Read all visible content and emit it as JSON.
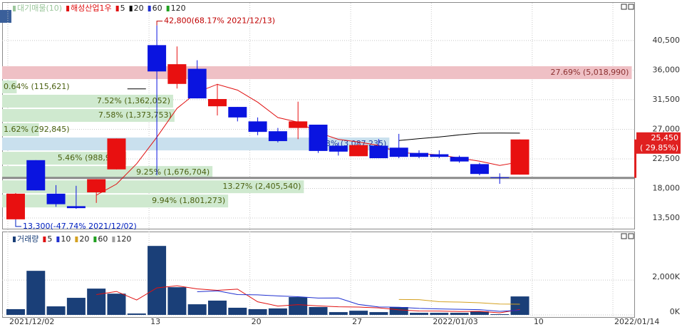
{
  "chart_data": {
    "type": "candlestick",
    "legend": [
      {
        "name": "대기매물(10)",
        "color": "#9cc79c"
      },
      {
        "name": "해성산업1우",
        "color": "#e01010"
      },
      {
        "name": 5,
        "color": "#e01010"
      },
      {
        "name": 20,
        "color": "#000000"
      },
      {
        "name": 60,
        "color": "#2030d0"
      },
      {
        "name": 120,
        "color": "#20a020"
      }
    ],
    "up_color": "#e81010",
    "down_color": "#0a14e0",
    "flat_color": "#000000",
    "xlim": [
      -0.67,
      30.67
    ],
    "xticks": [
      {
        "value": 0,
        "label": "2021/12/02"
      },
      {
        "value": 7,
        "label": "13"
      },
      {
        "value": 12,
        "label": "20"
      },
      {
        "value": 17,
        "label": "27"
      },
      {
        "value": 21,
        "label": "2022/01/03"
      },
      {
        "value": 26,
        "label": "10"
      },
      {
        "value": 30,
        "label": "2022/01/14"
      }
    ],
    "ylim": [
      12200,
      45800
    ],
    "yticks": [
      {
        "value": 13500,
        "label": "13,500"
      },
      {
        "value": 18000,
        "label": "18,000"
      },
      {
        "value": 22500,
        "label": "22,500"
      },
      {
        "value": 27000,
        "label": "27,000"
      },
      {
        "value": 31500,
        "label": "31,500"
      },
      {
        "value": 36000,
        "label": "36,000"
      },
      {
        "value": 40500,
        "label": "40,500"
      }
    ],
    "open": [
      13300,
      22300,
      17200,
      15300,
      17400,
      20900,
      33200,
      39800,
      33900,
      36200,
      30500,
      30400,
      28200,
      26700,
      27200,
      27700,
      24500,
      22900,
      24500,
      24200,
      23400,
      23200,
      22800,
      21700,
      19700,
      20100
    ],
    "high": [
      17300,
      22300,
      18500,
      18400,
      19400,
      25600,
      33200,
      42800,
      39600,
      37500,
      33900,
      30400,
      28800,
      27200,
      31200,
      27700,
      25000,
      24800,
      25500,
      26300,
      23800,
      23800,
      23000,
      21900,
      20300,
      25450
    ],
    "low": [
      13300,
      17700,
      15200,
      14900,
      15800,
      20900,
      33200,
      20000,
      33200,
      31700,
      29100,
      28200,
      26100,
      25000,
      25500,
      23400,
      23000,
      22900,
      22600,
      22600,
      22600,
      22600,
      21900,
      20000,
      18700,
      20100
    ],
    "close": [
      17200,
      17700,
      15600,
      15000,
      19400,
      25600,
      33200,
      35800,
      36900,
      31700,
      31600,
      28800,
      26600,
      25200,
      28200,
      23700,
      23600,
      24600,
      22600,
      22800,
      22800,
      22800,
      22100,
      20200,
      19600,
      25450
    ],
    "ref_line": 19600,
    "current": {
      "value": {
        "value": 25450,
        "label": "25,450"
      },
      "change": {
        "value": 29.85,
        "label": "( 29.85%)"
      }
    },
    "max_note": {
      "index": 7,
      "value": 42800,
      "label": "42,800(68.17% 2021/12/13)"
    },
    "min_note": {
      "index": 0,
      "value": 13300,
      "label": "13,300(-47.74% 2021/12/02)"
    },
    "profile": {
      "bins": [
        15000,
        17170,
        19340,
        21510,
        23680,
        25850,
        28020,
        30190,
        32360,
        34530,
        36700
      ],
      "values": [
        9.94,
        13.27,
        9.25,
        5.46,
        17.03,
        1.62,
        7.58,
        7.52,
        0.64,
        27.69
      ],
      "value_labels": [
        "9.94% (1,801,273)",
        "13.27% (2,405,540)",
        "9.25% (1,676,704)",
        "5.46% (988,946)",
        "17.03% (3,087,235)",
        "1.62% (292,845)",
        "7.58% (1,373,753)",
        "7.52% (1,362,052)",
        "0.64% (115,621)",
        "27.69% (5,018,990)"
      ],
      "colors": [
        "#cfe9cf",
        "#cfe9cf",
        "#cfe9cf",
        "#cfe9cf",
        "#c9e0ee",
        "#cfe9cf",
        "#cfe9cf",
        "#cfe9cf",
        "#cfe9cf",
        "#efc0c5"
      ],
      "xlim": [
        0,
        27.8
      ]
    },
    "volume": {
      "legend": [
        {
          "name": "거래량",
          "color": "#1a3f78"
        },
        {
          "name": 5,
          "color": "#e01010"
        },
        {
          "name": 10,
          "color": "#2030d0"
        },
        {
          "name": 20,
          "color": "#d4a020"
        },
        {
          "name": 60,
          "color": "#20a020"
        },
        {
          "name": 120,
          "color": "#a0a0a0"
        }
      ],
      "color": "#1a3f78",
      "values": [
        330,
        2530,
        490,
        980,
        1510,
        1220,
        80,
        3960,
        1590,
        610,
        820,
        410,
        330,
        370,
        1020,
        450,
        160,
        240,
        160,
        450,
        120,
        120,
        120,
        200,
        40,
        1060
      ],
      "ylim": [
        0,
        4500
      ],
      "yticks": [
        {
          "value": 0,
          "label": "0K"
        },
        {
          "value": 2000,
          "label": "2,000K"
        }
      ]
    }
  }
}
